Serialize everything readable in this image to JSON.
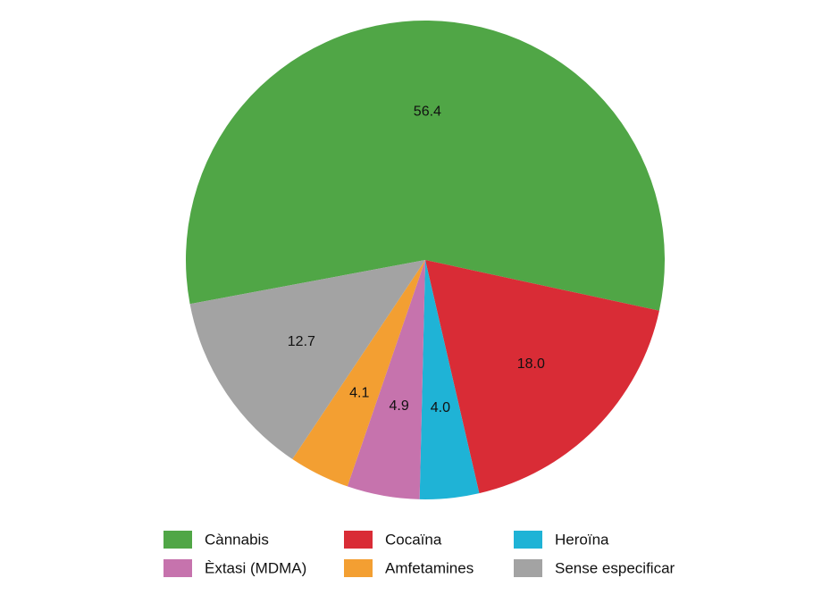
{
  "chart_data": {
    "type": "pie",
    "title": "",
    "legend_position": "bottom",
    "slices": [
      {
        "label": "Cànnabis",
        "value": 56.4,
        "value_label": "56.4",
        "color": "#50a646"
      },
      {
        "label": "Cocaïna",
        "value": 18.0,
        "value_label": "18.0",
        "color": "#d92c36"
      },
      {
        "label": "Heroïna",
        "value": 4.0,
        "value_label": "4.0",
        "color": "#1fb3d6"
      },
      {
        "label": "Èxtasi (MDMA)",
        "value": 4.9,
        "value_label": "4.9",
        "color": "#c673ad"
      },
      {
        "label": "Amfetamines",
        "value": 4.1,
        "value_label": "4.1",
        "color": "#f39f32"
      },
      {
        "label": "Sense especificar",
        "value": 12.7,
        "value_label": "12.7",
        "color": "#a3a3a3"
      }
    ]
  }
}
